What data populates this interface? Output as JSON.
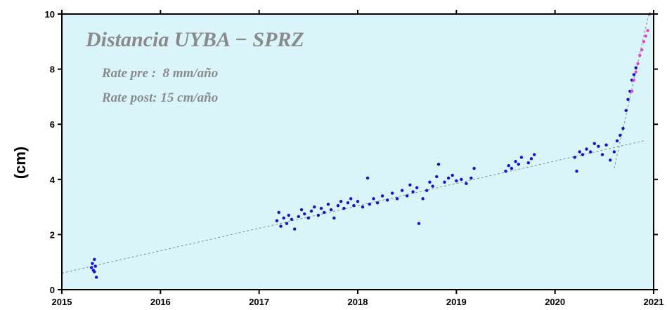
{
  "chart_data": {
    "type": "scatter",
    "title": "Distancia UYBA − SPRZ",
    "annotations": [
      "Rate pre :  8 mm/año",
      "Rate post: 15 cm/año"
    ],
    "ylabel": "(cm)",
    "xlim": [
      2015,
      2021
    ],
    "xticks": [
      2015,
      2016,
      2017,
      2018,
      2019,
      2020,
      2021
    ],
    "ylim": [
      0,
      10
    ],
    "yticks": [
      0,
      2,
      4,
      6,
      8,
      10
    ],
    "background": "#daf5fa",
    "series": [
      {
        "color": "#1010e0",
        "x": [
          2015.3,
          2015.31,
          2015.32,
          2015.33,
          2015.34,
          2015.35,
          2015.33,
          2017.18,
          2017.2,
          2017.22,
          2017.25,
          2017.28,
          2017.3,
          2017.33,
          2017.36,
          2017.4,
          2017.43,
          2017.46,
          2017.5,
          2017.53,
          2017.56,
          2017.6,
          2017.63,
          2017.66,
          2017.7,
          2017.73,
          2017.76,
          2017.8,
          2017.83,
          2017.86,
          2017.9,
          2017.93,
          2017.96,
          2018.0,
          2018.05,
          2018.1,
          2018.12,
          2018.16,
          2018.2,
          2018.25,
          2018.3,
          2018.35,
          2018.4,
          2018.45,
          2018.5,
          2018.53,
          2018.56,
          2018.6,
          2018.62,
          2018.66,
          2018.7,
          2018.73,
          2018.76,
          2018.8,
          2018.82,
          2018.88,
          2018.92,
          2018.96,
          2019.0,
          2019.05,
          2019.1,
          2019.15,
          2019.18,
          2019.5,
          2019.53,
          2019.56,
          2019.6,
          2019.63,
          2019.66,
          2019.73,
          2019.76,
          2019.79,
          2020.2,
          2020.22,
          2020.25,
          2020.28,
          2020.32,
          2020.36,
          2020.4,
          2020.44,
          2020.48,
          2020.52,
          2020.56,
          2020.6,
          2020.63,
          2020.66,
          2020.69,
          2020.72,
          2020.74,
          2020.76,
          2020.78,
          2020.8,
          2020.82
        ],
        "values": [
          0.8,
          0.95,
          0.7,
          1.1,
          0.85,
          0.45,
          0.65,
          2.5,
          2.8,
          2.3,
          2.6,
          2.4,
          2.7,
          2.55,
          2.2,
          2.65,
          2.9,
          2.75,
          2.6,
          2.85,
          3.0,
          2.7,
          2.95,
          2.8,
          3.1,
          2.9,
          2.6,
          3.05,
          3.2,
          2.95,
          3.15,
          3.3,
          3.05,
          3.2,
          3.0,
          4.05,
          3.1,
          3.3,
          3.15,
          3.4,
          3.25,
          3.5,
          3.3,
          3.6,
          3.4,
          3.8,
          3.55,
          3.7,
          2.4,
          3.3,
          3.6,
          3.9,
          3.75,
          4.1,
          4.55,
          3.9,
          4.05,
          4.15,
          3.95,
          4.0,
          3.85,
          4.05,
          4.4,
          4.3,
          4.5,
          4.4,
          4.65,
          4.55,
          4.8,
          4.6,
          4.75,
          4.9,
          4.8,
          4.3,
          5.0,
          4.9,
          5.1,
          5.0,
          5.3,
          5.2,
          4.9,
          5.25,
          4.7,
          5.0,
          5.4,
          5.6,
          5.85,
          6.5,
          6.9,
          7.2,
          7.6,
          7.8,
          8.05
        ]
      },
      {
        "color": "#e040e0",
        "x": [
          2020.78,
          2020.8,
          2020.82,
          2020.84,
          2020.86,
          2020.88,
          2020.9,
          2020.92,
          2020.94,
          2020.96
        ],
        "values": [
          7.2,
          7.6,
          7.9,
          8.2,
          8.5,
          8.7,
          9.0,
          9.2,
          9.4,
          10.0
        ]
      }
    ],
    "trend_lines": [
      {
        "x": [
          2015,
          2020.9
        ],
        "y": [
          0.6,
          5.4
        ]
      },
      {
        "x": [
          2020.6,
          2020.95
        ],
        "y": [
          4.4,
          10
        ]
      }
    ]
  }
}
